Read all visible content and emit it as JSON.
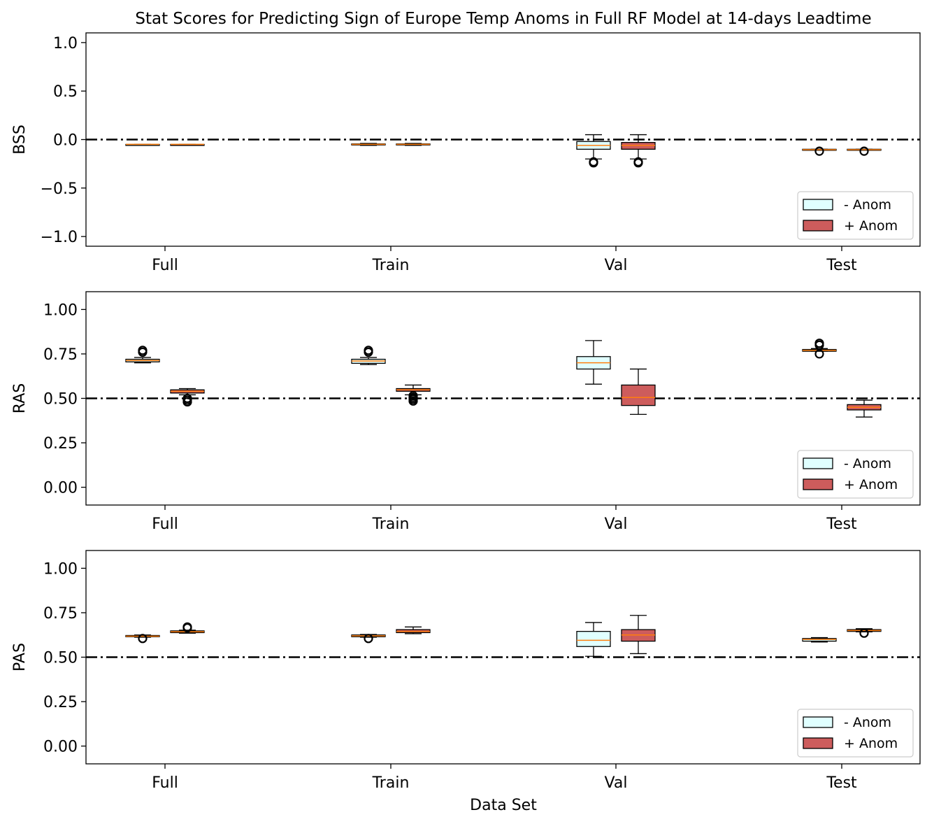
{
  "title": "Stat Scores for Predicting Sign of Europe Temp Anoms in Full RF Model at 14-days Leadtime",
  "xlabel": "Data Set",
  "colors": {
    "neg_fill": "#e0ffff",
    "pos_fill": "#cd5c5c",
    "median": "#ff7f0e",
    "edge": "#000000",
    "reference_line": "#000000"
  },
  "legend": {
    "neg_label": "- Anom",
    "pos_label": "+ Anom",
    "placement": "lower right"
  },
  "chart_data": [
    {
      "type": "box",
      "ylabel": "BSS",
      "categories": [
        "Full",
        "Train",
        "Val",
        "Test"
      ],
      "ylim": [
        -1.1,
        1.1
      ],
      "yticks": [
        -1.0,
        -0.5,
        0.0,
        0.5,
        1.0
      ],
      "ytick_labels": [
        "−1.0",
        "−0.5",
        "0.0",
        "0.5",
        "1.0"
      ],
      "reference_line": 0.0,
      "grid": false,
      "series": [
        {
          "name": "- Anom",
          "boxes": [
            {
              "whislo": -0.05,
              "q1": -0.05,
              "med": -0.05,
              "q3": -0.05,
              "whishi": -0.05,
              "fliers": []
            },
            {
              "whislo": -0.06,
              "q1": -0.055,
              "med": -0.05,
              "q3": -0.045,
              "whishi": -0.04,
              "fliers": []
            },
            {
              "whislo": -0.2,
              "q1": -0.1,
              "med": -0.06,
              "q3": -0.02,
              "whishi": 0.05,
              "fliers": [
                -0.23,
                -0.24
              ]
            },
            {
              "whislo": -0.11,
              "q1": -0.11,
              "med": -0.105,
              "q3": -0.1,
              "whishi": -0.1,
              "fliers": [
                -0.12
              ]
            }
          ]
        },
        {
          "name": "+ Anom",
          "boxes": [
            {
              "whislo": -0.05,
              "q1": -0.05,
              "med": -0.05,
              "q3": -0.05,
              "whishi": -0.05,
              "fliers": []
            },
            {
              "whislo": -0.06,
              "q1": -0.055,
              "med": -0.05,
              "q3": -0.045,
              "whishi": -0.04,
              "fliers": []
            },
            {
              "whislo": -0.2,
              "q1": -0.1,
              "med": -0.06,
              "q3": -0.03,
              "whishi": 0.05,
              "fliers": [
                -0.23,
                -0.24
              ]
            },
            {
              "whislo": -0.11,
              "q1": -0.11,
              "med": -0.105,
              "q3": -0.1,
              "whishi": -0.1,
              "fliers": [
                -0.12
              ]
            }
          ]
        }
      ]
    },
    {
      "type": "box",
      "ylabel": "RAS",
      "categories": [
        "Full",
        "Train",
        "Val",
        "Test"
      ],
      "ylim": [
        -0.1,
        1.1
      ],
      "yticks": [
        0.0,
        0.25,
        0.5,
        0.75,
        1.0
      ],
      "ytick_labels": [
        "0.00",
        "0.25",
        "0.50",
        "0.75",
        "1.00"
      ],
      "reference_line": 0.5,
      "grid": false,
      "series": [
        {
          "name": "- Anom",
          "boxes": [
            {
              "whislo": 0.7,
              "q1": 0.705,
              "med": 0.713,
              "q3": 0.72,
              "whishi": 0.73,
              "fliers": [
                0.76,
                0.77
              ]
            },
            {
              "whislo": 0.69,
              "q1": 0.697,
              "med": 0.71,
              "q3": 0.72,
              "whishi": 0.73,
              "fliers": [
                0.76,
                0.77
              ]
            },
            {
              "whislo": 0.58,
              "q1": 0.665,
              "med": 0.7,
              "q3": 0.735,
              "whishi": 0.825,
              "fliers": []
            },
            {
              "whislo": 0.765,
              "q1": 0.765,
              "med": 0.77,
              "q3": 0.775,
              "whishi": 0.78,
              "fliers": [
                0.75,
                0.8,
                0.81
              ]
            }
          ]
        },
        {
          "name": "+ Anom",
          "boxes": [
            {
              "whislo": 0.52,
              "q1": 0.53,
              "med": 0.54,
              "q3": 0.548,
              "whishi": 0.555,
              "fliers": [
                0.48,
                0.49,
                0.5
              ]
            },
            {
              "whislo": 0.52,
              "q1": 0.54,
              "med": 0.548,
              "q3": 0.555,
              "whishi": 0.575,
              "fliers": [
                0.485,
                0.495,
                0.505,
                0.515
              ]
            },
            {
              "whislo": 0.41,
              "q1": 0.46,
              "med": 0.505,
              "q3": 0.575,
              "whishi": 0.665,
              "fliers": []
            },
            {
              "whislo": 0.395,
              "q1": 0.435,
              "med": 0.45,
              "q3": 0.465,
              "whishi": 0.49,
              "fliers": []
            }
          ]
        }
      ]
    },
    {
      "type": "box",
      "ylabel": "PAS",
      "categories": [
        "Full",
        "Train",
        "Val",
        "Test"
      ],
      "ylim": [
        -0.1,
        1.1
      ],
      "yticks": [
        0.0,
        0.25,
        0.5,
        0.75,
        1.0
      ],
      "ytick_labels": [
        "0.00",
        "0.25",
        "0.50",
        "0.75",
        "1.00"
      ],
      "reference_line": 0.5,
      "grid": false,
      "series": [
        {
          "name": "- Anom",
          "boxes": [
            {
              "whislo": 0.612,
              "q1": 0.615,
              "med": 0.618,
              "q3": 0.622,
              "whishi": 0.625,
              "fliers": [
                0.605
              ]
            },
            {
              "whislo": 0.612,
              "q1": 0.615,
              "med": 0.62,
              "q3": 0.625,
              "whishi": 0.628,
              "fliers": [
                0.605
              ]
            },
            {
              "whislo": 0.505,
              "q1": 0.56,
              "med": 0.595,
              "q3": 0.645,
              "whishi": 0.695,
              "fliers": []
            },
            {
              "whislo": 0.585,
              "q1": 0.59,
              "med": 0.6,
              "q3": 0.605,
              "whishi": 0.61,
              "fliers": []
            }
          ]
        },
        {
          "name": "+ Anom",
          "boxes": [
            {
              "whislo": 0.635,
              "q1": 0.638,
              "med": 0.643,
              "q3": 0.648,
              "whishi": 0.652,
              "fliers": [
                0.665,
                0.67
              ]
            },
            {
              "whislo": 0.632,
              "q1": 0.638,
              "med": 0.645,
              "q3": 0.655,
              "whishi": 0.67,
              "fliers": []
            },
            {
              "whislo": 0.52,
              "q1": 0.59,
              "med": 0.625,
              "q3": 0.655,
              "whishi": 0.735,
              "fliers": []
            },
            {
              "whislo": 0.642,
              "q1": 0.645,
              "med": 0.65,
              "q3": 0.655,
              "whishi": 0.66,
              "fliers": [
                0.635
              ]
            }
          ]
        }
      ]
    }
  ]
}
